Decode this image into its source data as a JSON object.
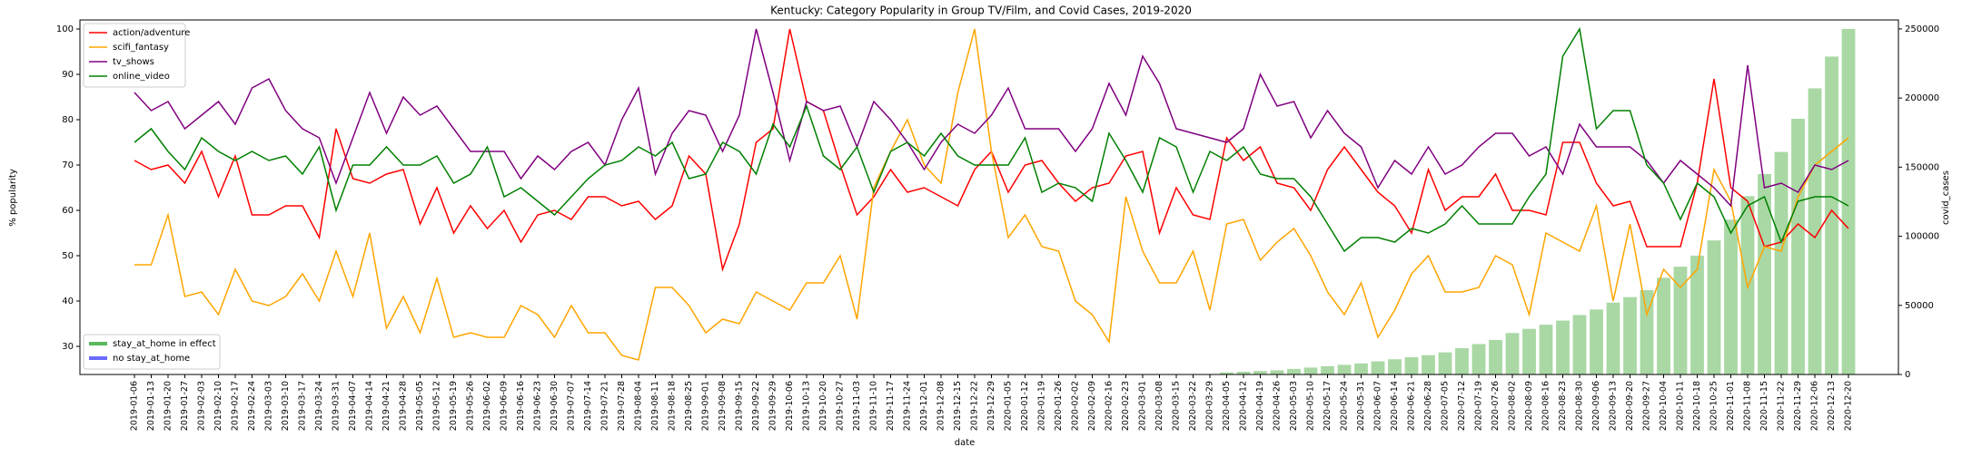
{
  "chart_data": {
    "type": "line",
    "title": "Kentucky: Category Popularity in Group TV/Film, and Covid Cases, 2019-2020",
    "xlabel": "date",
    "ylabel": "% popularity",
    "y2label": "covid_cases",
    "categories": [
      "2019-01-06",
      "2019-01-13",
      "2019-01-20",
      "2019-01-27",
      "2019-02-03",
      "2019-02-10",
      "2019-02-17",
      "2019-02-24",
      "2019-03-03",
      "2019-03-10",
      "2019-03-17",
      "2019-03-24",
      "2019-03-31",
      "2019-04-07",
      "2019-04-14",
      "2019-04-21",
      "2019-04-28",
      "2019-05-05",
      "2019-05-12",
      "2019-05-19",
      "2019-05-26",
      "2019-06-02",
      "2019-06-09",
      "2019-06-16",
      "2019-06-23",
      "2019-06-30",
      "2019-07-07",
      "2019-07-14",
      "2019-07-21",
      "2019-07-28",
      "2019-08-04",
      "2019-08-11",
      "2019-08-18",
      "2019-08-25",
      "2019-09-01",
      "2019-09-08",
      "2019-09-15",
      "2019-09-22",
      "2019-09-29",
      "2019-10-06",
      "2019-10-13",
      "2019-10-20",
      "2019-10-27",
      "2019-11-03",
      "2019-11-10",
      "2019-11-17",
      "2019-11-24",
      "2019-12-01",
      "2019-12-08",
      "2019-12-15",
      "2019-12-22",
      "2019-12-29",
      "2020-01-05",
      "2020-01-12",
      "2020-01-19",
      "2020-01-26",
      "2020-02-02",
      "2020-02-09",
      "2020-02-16",
      "2020-02-23",
      "2020-03-01",
      "2020-03-08",
      "2020-03-15",
      "2020-03-22",
      "2020-03-29",
      "2020-04-05",
      "2020-04-12",
      "2020-04-19",
      "2020-04-26",
      "2020-05-03",
      "2020-05-10",
      "2020-05-17",
      "2020-05-24",
      "2020-05-31",
      "2020-06-07",
      "2020-06-14",
      "2020-06-21",
      "2020-06-28",
      "2020-07-05",
      "2020-07-12",
      "2020-07-19",
      "2020-07-26",
      "2020-08-02",
      "2020-08-09",
      "2020-08-16",
      "2020-08-23",
      "2020-08-30",
      "2020-09-06",
      "2020-09-13",
      "2020-09-20",
      "2020-09-27",
      "2020-10-04",
      "2020-10-11",
      "2020-10-18",
      "2020-10-25",
      "2020-11-01",
      "2020-11-08",
      "2020-11-15",
      "2020-11-22",
      "2020-11-29",
      "2020-12-06",
      "2020-12-13",
      "2020-12-20"
    ],
    "series": [
      {
        "name": "action/adventure",
        "color": "#ff0000",
        "values": [
          71,
          69,
          70,
          66,
          73,
          63,
          72,
          59,
          59,
          61,
          61,
          54,
          78,
          67,
          66,
          68,
          69,
          57,
          65,
          55,
          61,
          56,
          60,
          53,
          59,
          60,
          58,
          63,
          63,
          61,
          62,
          58,
          61,
          72,
          68,
          47,
          57,
          75,
          78,
          100,
          84,
          82,
          70,
          59,
          63,
          69,
          64,
          65,
          63,
          61,
          69,
          73,
          64,
          70,
          71,
          66,
          62,
          65,
          66,
          72,
          73,
          55,
          65,
          59,
          58,
          76,
          71,
          74,
          66,
          65,
          60,
          69,
          74,
          69,
          64,
          61,
          55,
          69,
          60,
          63,
          63,
          68,
          60,
          60,
          59,
          75,
          75,
          66,
          61,
          62,
          52,
          52,
          52,
          66,
          89,
          65,
          62,
          52,
          53,
          57,
          54,
          60,
          56
        ]
      },
      {
        "name": "scifi_fantasy",
        "color": "#ffa500",
        "values": [
          48,
          48,
          59,
          41,
          42,
          37,
          47,
          40,
          39,
          41,
          46,
          40,
          51,
          41,
          55,
          34,
          41,
          33,
          45,
          32,
          33,
          32,
          32,
          39,
          37,
          32,
          39,
          33,
          33,
          28,
          27,
          43,
          43,
          39,
          33,
          36,
          35,
          42,
          40,
          38,
          44,
          44,
          50,
          36,
          65,
          73,
          80,
          70,
          66,
          86,
          100,
          73,
          54,
          59,
          52,
          51,
          40,
          37,
          31,
          63,
          51,
          44,
          44,
          51,
          38,
          57,
          58,
          49,
          53,
          56,
          50,
          42,
          37,
          44,
          32,
          38,
          46,
          50,
          42,
          42,
          43,
          50,
          48,
          37,
          55,
          53,
          51,
          61,
          40,
          57,
          37,
          47,
          43,
          47,
          69,
          62,
          43,
          52,
          51,
          63,
          70,
          73,
          76
        ]
      },
      {
        "name": "tv_shows",
        "color": "#800080",
        "values": [
          86,
          82,
          84,
          78,
          81,
          84,
          79,
          87,
          89,
          82,
          78,
          76,
          66,
          76,
          86,
          77,
          85,
          81,
          83,
          78,
          73,
          73,
          73,
          67,
          72,
          69,
          73,
          75,
          70,
          80,
          87,
          68,
          77,
          82,
          81,
          73,
          81,
          100,
          86,
          71,
          84,
          82,
          83,
          74,
          84,
          80,
          75,
          69,
          75,
          79,
          77,
          81,
          87,
          78,
          78,
          78,
          73,
          78,
          88,
          81,
          94,
          88,
          78,
          77,
          76,
          75,
          78,
          90,
          83,
          84,
          76,
          82,
          77,
          74,
          65,
          71,
          68,
          74,
          68,
          70,
          74,
          77,
          77,
          72,
          74,
          68,
          79,
          74,
          74,
          74,
          71,
          66,
          71,
          68,
          65,
          61,
          92,
          65,
          66,
          64,
          70,
          69,
          71
        ]
      },
      {
        "name": "online_video",
        "color": "#008000",
        "values": [
          75,
          78,
          73,
          69,
          76,
          73,
          71,
          73,
          71,
          72,
          68,
          74,
          60,
          70,
          70,
          74,
          70,
          70,
          72,
          66,
          68,
          74,
          63,
          65,
          62,
          59,
          63,
          67,
          70,
          71,
          74,
          72,
          75,
          67,
          68,
          75,
          73,
          68,
          79,
          74,
          83,
          72,
          69,
          74,
          64,
          73,
          75,
          72,
          77,
          72,
          70,
          70,
          70,
          76,
          64,
          66,
          65,
          62,
          77,
          71,
          64,
          76,
          74,
          64,
          73,
          71,
          74,
          68,
          67,
          67,
          63,
          57,
          51,
          54,
          54,
          53,
          56,
          55,
          57,
          61,
          57,
          57,
          57,
          63,
          68,
          94,
          100,
          78,
          82,
          82,
          70,
          66,
          58,
          66,
          63,
          55,
          61,
          63,
          53,
          62,
          63,
          63,
          61
        ]
      }
    ],
    "bars": {
      "color": "#a9d8a4",
      "values": [
        null,
        null,
        null,
        null,
        null,
        null,
        null,
        null,
        null,
        null,
        null,
        null,
        null,
        null,
        null,
        null,
        null,
        null,
        null,
        null,
        null,
        null,
        null,
        null,
        null,
        null,
        null,
        null,
        null,
        null,
        null,
        null,
        null,
        null,
        null,
        null,
        null,
        null,
        null,
        null,
        null,
        null,
        null,
        null,
        null,
        null,
        null,
        null,
        null,
        null,
        null,
        null,
        null,
        null,
        null,
        null,
        null,
        null,
        null,
        null,
        null,
        null,
        null,
        null,
        null,
        1500,
        2000,
        2500,
        3000,
        4000,
        5000,
        6000,
        7000,
        8000,
        9500,
        11000,
        12500,
        14000,
        16000,
        19000,
        22000,
        25000,
        30000,
        33000,
        36000,
        39000,
        43000,
        47000,
        52000,
        56000,
        61000,
        70000,
        78000,
        86000,
        97000,
        112000,
        129000,
        145000,
        161000,
        185000,
        207000,
        230000,
        250000
      ]
    },
    "bar_legend": [
      {
        "name": "stay_at_home in effect",
        "color": "#5cb85c"
      },
      {
        "name": "no stay_at_home",
        "color": "#6b6bff"
      }
    ],
    "ylim": [
      23.8,
      102
    ],
    "yticks": [
      30,
      40,
      50,
      60,
      70,
      80,
      90,
      100
    ],
    "y2lim": [
      0,
      256500
    ],
    "y2ticks": [
      0,
      50000,
      100000,
      150000,
      200000,
      250000
    ]
  }
}
